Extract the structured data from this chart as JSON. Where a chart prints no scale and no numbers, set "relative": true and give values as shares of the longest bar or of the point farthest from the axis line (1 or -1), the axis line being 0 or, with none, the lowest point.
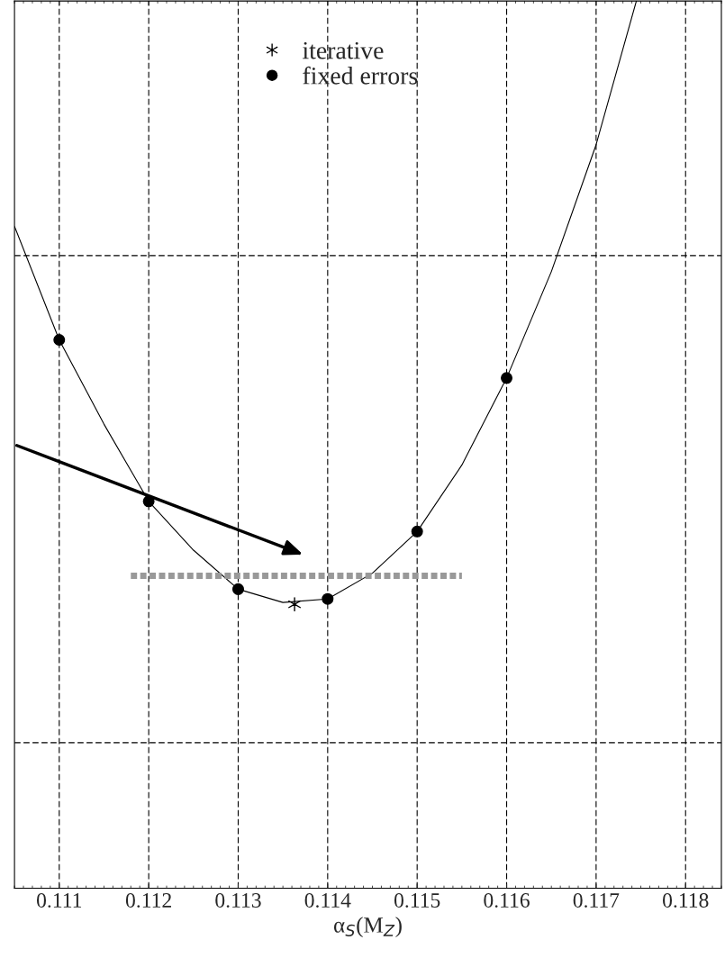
{
  "chart_data": {
    "type": "scatter",
    "relative": true,
    "xlabel": "α$_{S}$(M$_{Z}$)",
    "xlim": [
      0.1105,
      0.1184
    ],
    "xticks": [
      0.111,
      0.112,
      0.113,
      0.114,
      0.115,
      0.116,
      0.117,
      0.118
    ],
    "grid": "x",
    "legend": "top",
    "ref_lines": [
      {
        "axis": "y",
        "value": 0.713,
        "color": "#000000",
        "line_style": "dashed"
      },
      {
        "axis": "y",
        "value": 0.164,
        "color": "#000000",
        "line_style": "dashed"
      }
    ],
    "series": [
      {
        "type": "line",
        "color": "#000000",
        "marker": "none",
        "line_style": "solid",
        "x": [
          0.1105,
          0.111,
          0.1115,
          0.112,
          0.1125,
          0.113,
          0.1135,
          0.114,
          0.1145,
          0.115,
          0.1155,
          0.116,
          0.1165,
          0.117,
          0.11745
        ],
        "values": [
          0.746,
          0.618,
          0.523,
          0.436,
          0.381,
          0.337,
          0.322,
          0.326,
          0.355,
          0.402,
          0.477,
          0.575,
          0.695,
          0.838,
          1.0
        ]
      },
      {
        "type": "line",
        "color": "#999999",
        "marker": "none",
        "line_style": "dotted",
        "x": [
          0.1118,
          0.1155
        ],
        "values": [
          0.352,
          0.352
        ]
      },
      {
        "name": "iterative",
        "color": "#000000",
        "marker": "cross",
        "x": [
          0.11363
        ],
        "values": [
          0.32
        ]
      },
      {
        "name": "fixed errors",
        "color": "#000000",
        "marker": "circle",
        "x": [
          0.111,
          0.112,
          0.113,
          0.114,
          0.115,
          0.116
        ],
        "values": [
          0.618,
          0.436,
          0.337,
          0.326,
          0.402,
          0.575
        ]
      }
    ]
  }
}
